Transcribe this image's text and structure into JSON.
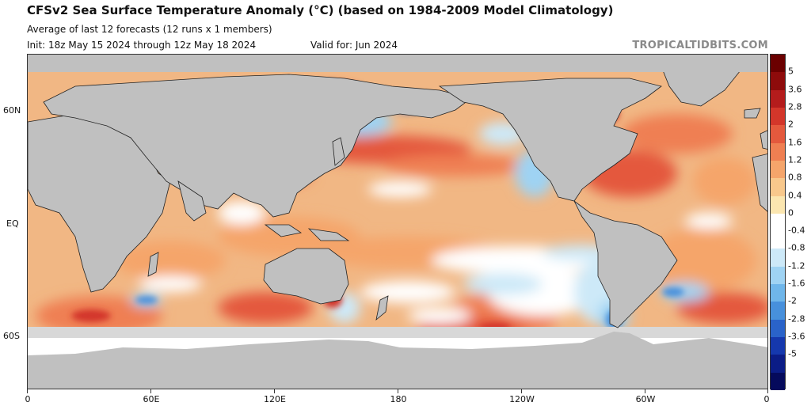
{
  "header": {
    "title": "CFSv2 Sea Surface Temperature Anomaly (°C) (based on 1984-2009 Model Climatology)",
    "subtitle": "Average of last 12 forecasts (12 runs x 1 members)",
    "init": "Init: 18z May 15 2024 through 12z May 18 2024",
    "valid": "Valid for: Jun 2024",
    "brand": "TROPICALTIDBITS.COM"
  },
  "map": {
    "lat_labels": [
      "60N",
      "EQ",
      "60S"
    ],
    "lon_labels": [
      "0",
      "60E",
      "120E",
      "180",
      "120W",
      "60W",
      "0"
    ],
    "colors": {
      "ocean_base": "#f1b784",
      "land": "#c0c0c0",
      "ice": "#d8d8d8",
      "no_data": "#ffffff"
    }
  },
  "colorbar": {
    "labels": [
      "5",
      "3.6",
      "2.8",
      "2",
      "1.6",
      "1.2",
      "0.8",
      "0.4",
      "0",
      "-0.4",
      "-0.8",
      "-1.2",
      "-1.6",
      "-2",
      "-2.8",
      "-3.6",
      "-5"
    ],
    "colors": [
      "#6b0000",
      "#8e0b0b",
      "#b41c1c",
      "#d3362a",
      "#e4593d",
      "#ef7f52",
      "#f5a56b",
      "#f8c88c",
      "#fbe6b0",
      "#ffffff",
      "#ffffff",
      "#cde9f8",
      "#9fd3f3",
      "#6fb6ea",
      "#4790dc",
      "#2a63c9",
      "#1538ad",
      "#0b1c86",
      "#050a5c"
    ]
  }
}
